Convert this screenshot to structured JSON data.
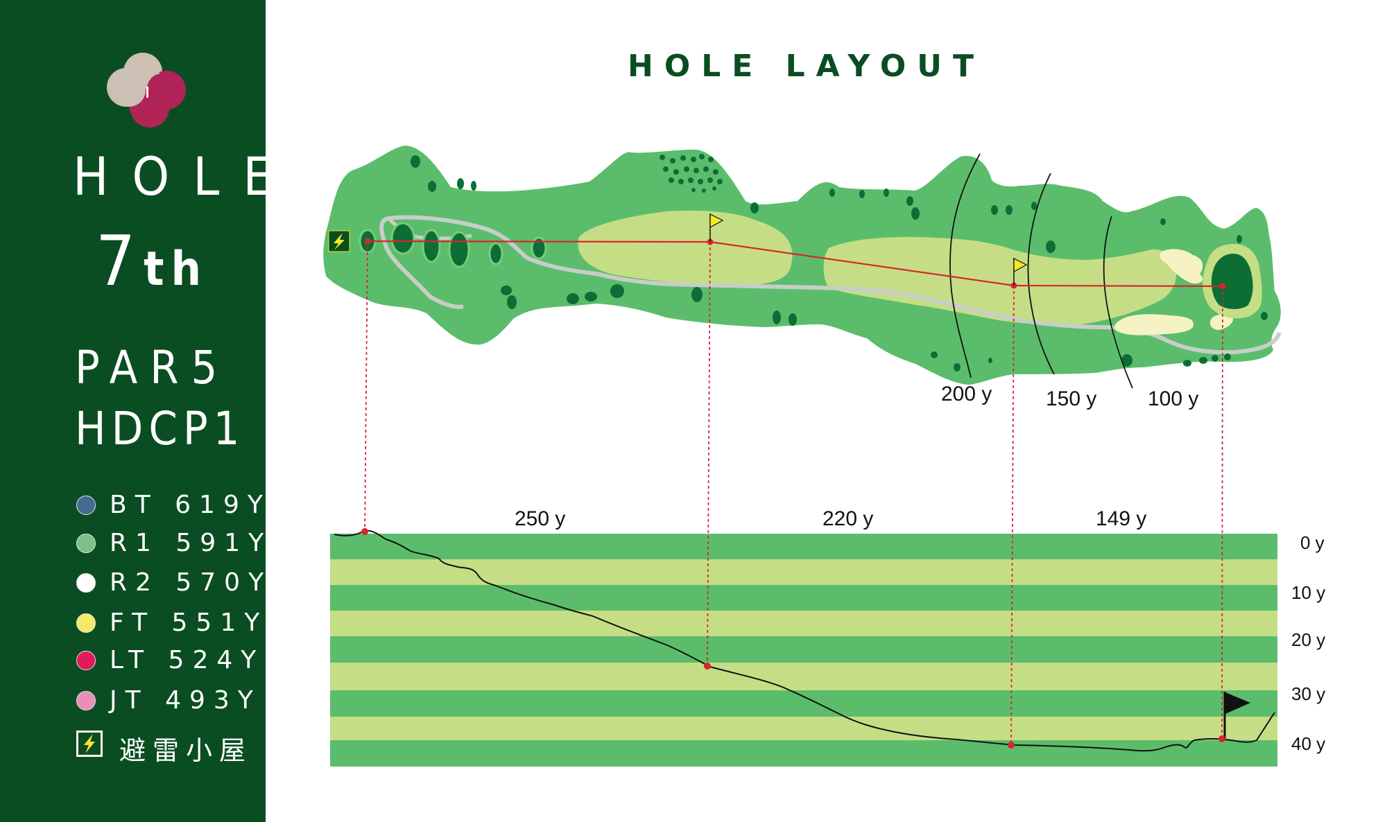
{
  "title": "HOLE LAYOUT",
  "hole": {
    "label": "HOLE",
    "number": "7",
    "suffix": "th",
    "par": "PAR5",
    "hdcp": "HDCP1"
  },
  "tees": [
    {
      "code": "BT",
      "yards": "619Y",
      "color": "#436b8f"
    },
    {
      "code": "R1",
      "yards": "591Y",
      "color": "#7cc08a"
    },
    {
      "code": "R2",
      "yards": "570Y",
      "color": "#ffffff"
    },
    {
      "code": "FT",
      "yards": "551Y",
      "color": "#f3ea68"
    },
    {
      "code": "LT",
      "yards": "524Y",
      "color": "#e4185a"
    },
    {
      "code": "JT",
      "yards": "493Y",
      "color": "#ec8db5"
    }
  ],
  "shelter": {
    "label": "避雷小屋",
    "icon": "lightning-icon"
  },
  "yardage_markers": [
    "200 y",
    "150 y",
    "100 y"
  ],
  "segments": [
    "250 y",
    "220 y",
    "149 y"
  ],
  "elevation_labels": [
    "0 y",
    "10 y",
    "20 y",
    "30 y",
    "40 y"
  ],
  "colors": {
    "panel": "#0b4d22",
    "rough": "#5bbd6b",
    "fairway": "#c5de85",
    "green": "#0c6e35",
    "bunker": "#f5f3c3",
    "path": "#c8cdc8",
    "route": "#d7262d",
    "flag": "#f6e82a",
    "stripe_dark": "#5bbd6b",
    "stripe_light": "#c5de85"
  }
}
